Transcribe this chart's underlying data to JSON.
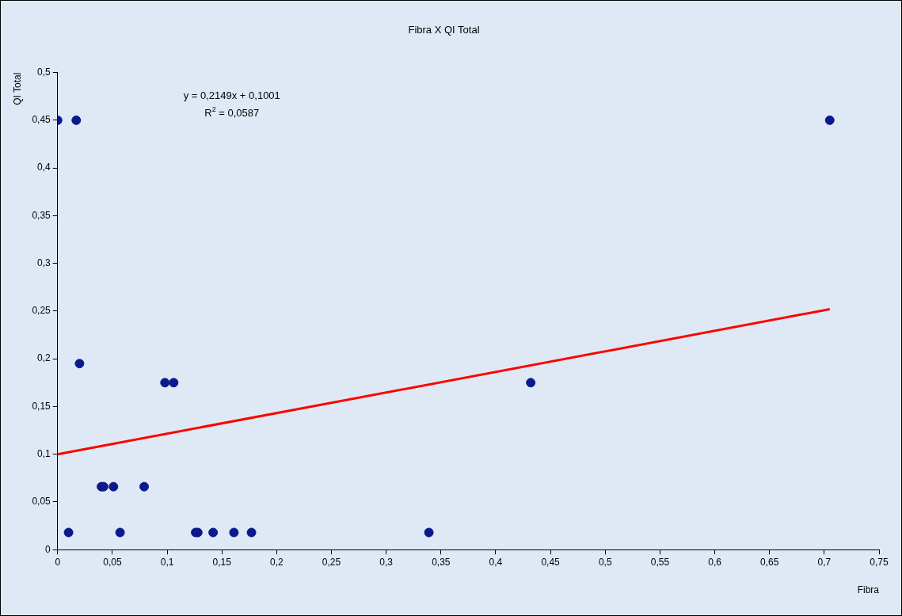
{
  "chart_data": {
    "type": "scatter",
    "title": "Fibra X QI Total",
    "xlabel": "Fibra",
    "ylabel": "QI Total",
    "xlim": [
      0,
      0.75
    ],
    "ylim": [
      0,
      0.5
    ],
    "xticks": [
      0,
      {
        "value": 0.05,
        "label": "0,05"
      },
      {
        "value": 0.1,
        "label": "0,1"
      },
      {
        "value": 0.15,
        "label": "0,15"
      },
      {
        "value": 0.2,
        "label": "0,2"
      },
      {
        "value": 0.25,
        "label": "0,25"
      },
      {
        "value": 0.3,
        "label": "0,3"
      },
      {
        "value": 0.35,
        "label": "0,35"
      },
      {
        "value": 0.4,
        "label": "0,4"
      },
      {
        "value": 0.45,
        "label": "0,45"
      },
      {
        "value": 0.5,
        "label": "0,5"
      },
      {
        "value": 0.55,
        "label": "0,55"
      },
      {
        "value": 0.6,
        "label": "0,6"
      },
      {
        "value": 0.65,
        "label": "0,65"
      },
      {
        "value": 0.7,
        "label": "0,7"
      },
      {
        "value": 0.75,
        "label": "0,75"
      }
    ],
    "yticks": [
      0,
      {
        "value": 0.05,
        "label": "0,05"
      },
      {
        "value": 0.1,
        "label": "0,1"
      },
      {
        "value": 0.15,
        "label": "0,15"
      },
      {
        "value": 0.2,
        "label": "0,2"
      },
      {
        "value": 0.25,
        "label": "0,25"
      },
      {
        "value": 0.3,
        "label": "0,3"
      },
      {
        "value": 0.35,
        "label": "0,35"
      },
      {
        "value": 0.4,
        "label": "0,4"
      },
      {
        "value": 0.45,
        "label": "0,45"
      },
      {
        "value": 0.5,
        "label": "0,5"
      }
    ],
    "grid": false,
    "legend": false,
    "marker": "circle",
    "annotations": [
      "y = 0,2149x + 0,1001",
      "R$^{2}$ = 0,0587"
    ],
    "series": [
      {
        "color": "#0a1a8c",
        "x": [
          0,
          0.017,
          0.01,
          0.02,
          0.04,
          0.042,
          0.051,
          0.057,
          0.079,
          0.098,
          0.106,
          0.126,
          0.128,
          0.142,
          0.161,
          0.177,
          0.339,
          0.432,
          0.705
        ],
        "values": [
          0.45,
          0.45,
          0.018,
          0.195,
          0.066,
          0.066,
          0.066,
          0.018,
          0.066,
          0.175,
          0.175,
          0.018,
          0.018,
          0.018,
          0.018,
          0.018,
          0.018,
          0.175,
          0.45
        ]
      },
      {
        "type": "line",
        "color": "#ff0000",
        "marker": "none",
        "line_style": "solid",
        "x": [
          0,
          0.705
        ],
        "values": [
          0.1,
          0.252
        ]
      }
    ]
  }
}
